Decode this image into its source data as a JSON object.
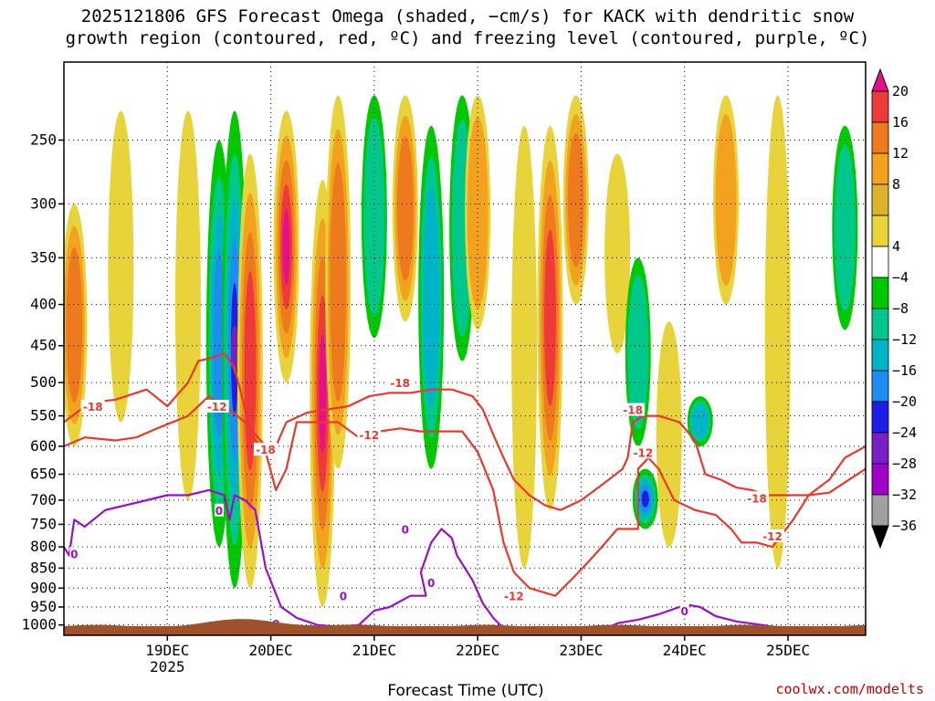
{
  "chart_data": {
    "type": "heatmap",
    "title_line1": "2025121806 GFS Forecast Omega (shaded, −cm/s) for KACK with dendritic snow",
    "title_line2": "growth region (contoured, red, ºC) and freezing level (contoured, purple, ºC)",
    "xlabel": "Forecast Time (UTC)",
    "ylabel": "",
    "x_ticks": [
      {
        "label": "19DEC",
        "sub": "2025",
        "day": 1
      },
      {
        "label": "20DEC",
        "sub": "",
        "day": 2
      },
      {
        "label": "21DEC",
        "sub": "",
        "day": 3
      },
      {
        "label": "22DEC",
        "sub": "",
        "day": 4
      },
      {
        "label": "23DEC",
        "sub": "",
        "day": 5
      },
      {
        "label": "24DEC",
        "sub": "",
        "day": 6
      },
      {
        "label": "25DEC",
        "sub": "",
        "day": 7
      }
    ],
    "x_range_days": [
      0.0,
      7.75
    ],
    "y_ticks": [
      250,
      300,
      350,
      400,
      450,
      500,
      550,
      600,
      650,
      700,
      750,
      800,
      850,
      900,
      950,
      1000
    ],
    "y_range_hpa": [
      200,
      1030
    ],
    "colorbar": {
      "labels": [
        "20",
        "16",
        "12",
        "8",
        "4",
        "−4",
        "−8",
        "−12",
        "−16",
        "−20",
        "−24",
        "−28",
        "−32",
        "−36"
      ],
      "colors": [
        "#e8108a",
        "#ee3a3a",
        "#ee7a1e",
        "#f2a21e",
        "#dcb42c",
        "#e8d43a",
        "#ffffff",
        "#00c800",
        "#00c88c",
        "#00b4c8",
        "#1e8cf0",
        "#1e1ee6",
        "#7a1ec8",
        "#a000c8",
        "#a0a0a0",
        "#000000"
      ]
    },
    "omega_bands": [
      {
        "day": 0.1,
        "p_top": 300,
        "p_bot": 600,
        "value": 12
      },
      {
        "day": 0.55,
        "p_top": 230,
        "p_bot": 560,
        "value": 6
      },
      {
        "day": 1.2,
        "p_top": 230,
        "p_bot": 700,
        "value": 5
      },
      {
        "day": 1.5,
        "p_top": 250,
        "p_bot": 800,
        "value": -16
      },
      {
        "day": 1.65,
        "p_top": 230,
        "p_bot": 900,
        "value": -24
      },
      {
        "day": 1.8,
        "p_top": 260,
        "p_bot": 900,
        "value": 16
      },
      {
        "day": 2.15,
        "p_top": 230,
        "p_bot": 500,
        "value": 20
      },
      {
        "day": 2.5,
        "p_top": 280,
        "p_bot": 950,
        "value": 20
      },
      {
        "day": 2.65,
        "p_top": 220,
        "p_bot": 640,
        "value": 12
      },
      {
        "day": 3.0,
        "p_top": 220,
        "p_bot": 440,
        "value": -10
      },
      {
        "day": 3.3,
        "p_top": 220,
        "p_bot": 420,
        "value": 14
      },
      {
        "day": 3.55,
        "p_top": 240,
        "p_bot": 640,
        "value": -12
      },
      {
        "day": 3.85,
        "p_top": 220,
        "p_bot": 470,
        "value": -8
      },
      {
        "day": 4.0,
        "p_top": 220,
        "p_bot": 430,
        "value": 8
      },
      {
        "day": 4.45,
        "p_top": 240,
        "p_bot": 850,
        "value": 6
      },
      {
        "day": 4.7,
        "p_top": 240,
        "p_bot": 720,
        "value": 16
      },
      {
        "day": 4.95,
        "p_top": 220,
        "p_bot": 400,
        "value": 14
      },
      {
        "day": 5.35,
        "p_top": 260,
        "p_bot": 460,
        "value": 6
      },
      {
        "day": 5.55,
        "p_top": 350,
        "p_bot": 600,
        "value": -8
      },
      {
        "day": 5.62,
        "p_top": 640,
        "p_bot": 760,
        "value": -20
      },
      {
        "day": 5.85,
        "p_top": 420,
        "p_bot": 800,
        "value": 6
      },
      {
        "day": 6.15,
        "p_top": 520,
        "p_bot": 600,
        "value": -12
      },
      {
        "day": 6.4,
        "p_top": 220,
        "p_bot": 400,
        "value": 8
      },
      {
        "day": 6.9,
        "p_top": 220,
        "p_bot": 850,
        "value": 6
      },
      {
        "day": 7.55,
        "p_top": 240,
        "p_bot": 430,
        "value": -8
      }
    ],
    "red_minus18_line": [
      [
        0.0,
        560
      ],
      [
        0.25,
        530
      ],
      [
        0.5,
        525
      ],
      [
        0.8,
        510
      ],
      [
        1.0,
        535
      ],
      [
        1.2,
        500
      ],
      [
        1.3,
        470
      ],
      [
        1.45,
        465
      ],
      [
        1.55,
        460
      ],
      [
        1.65,
        480
      ],
      [
        1.8,
        570
      ],
      [
        1.95,
        600
      ],
      [
        2.05,
        600
      ],
      [
        2.15,
        560
      ],
      [
        2.35,
        545
      ],
      [
        2.55,
        540
      ],
      [
        2.75,
        535
      ],
      [
        2.95,
        520
      ],
      [
        3.15,
        515
      ],
      [
        3.35,
        515
      ],
      [
        3.55,
        510
      ],
      [
        3.75,
        510
      ],
      [
        3.95,
        520
      ],
      [
        4.05,
        540
      ],
      [
        4.15,
        580
      ],
      [
        4.25,
        620
      ],
      [
        4.35,
        660
      ],
      [
        4.5,
        690
      ],
      [
        4.65,
        710
      ],
      [
        4.8,
        720
      ],
      [
        5.0,
        700
      ],
      [
        5.2,
        670
      ],
      [
        5.4,
        640
      ],
      [
        5.45,
        620
      ],
      [
        5.5,
        560
      ],
      [
        5.6,
        550
      ],
      [
        5.75,
        550
      ],
      [
        5.95,
        560
      ],
      [
        6.1,
        590
      ],
      [
        6.2,
        650
      ],
      [
        6.35,
        660
      ],
      [
        6.5,
        675
      ],
      [
        6.65,
        680
      ],
      [
        6.8,
        690
      ],
      [
        7.0,
        690
      ],
      [
        7.2,
        690
      ],
      [
        7.4,
        660
      ],
      [
        7.55,
        620
      ],
      [
        7.75,
        600
      ]
    ],
    "red_minus12_line": [
      [
        0.0,
        600
      ],
      [
        0.2,
        585
      ],
      [
        0.5,
        590
      ],
      [
        0.7,
        585
      ],
      [
        0.9,
        570
      ],
      [
        1.05,
        560
      ],
      [
        1.2,
        550
      ],
      [
        1.4,
        520
      ],
      [
        1.6,
        540
      ],
      [
        1.75,
        560
      ],
      [
        1.85,
        590
      ],
      [
        1.95,
        610
      ],
      [
        2.05,
        680
      ],
      [
        2.15,
        640
      ],
      [
        2.25,
        560
      ],
      [
        2.45,
        560
      ],
      [
        2.65,
        560
      ],
      [
        2.85,
        585
      ],
      [
        3.05,
        575
      ],
      [
        3.25,
        570
      ],
      [
        3.45,
        575
      ],
      [
        3.65,
        575
      ],
      [
        3.85,
        575
      ],
      [
        4.0,
        610
      ],
      [
        4.15,
        680
      ],
      [
        4.25,
        790
      ],
      [
        4.35,
        860
      ],
      [
        4.5,
        900
      ],
      [
        4.75,
        920
      ],
      [
        4.9,
        880
      ],
      [
        5.05,
        840
      ],
      [
        5.2,
        800
      ],
      [
        5.35,
        760
      ],
      [
        5.55,
        760
      ],
      [
        5.55,
        640
      ],
      [
        5.65,
        620
      ],
      [
        5.75,
        640
      ],
      [
        5.9,
        700
      ],
      [
        6.1,
        720
      ],
      [
        6.3,
        730
      ],
      [
        6.45,
        760
      ],
      [
        6.55,
        790
      ],
      [
        6.7,
        790
      ],
      [
        6.85,
        800
      ],
      [
        7.05,
        740
      ],
      [
        7.2,
        690
      ],
      [
        7.4,
        685
      ],
      [
        7.55,
        665
      ],
      [
        7.75,
        640
      ]
    ],
    "purple_zero_line": [
      [
        0.0,
        800
      ],
      [
        0.05,
        820
      ],
      [
        0.1,
        740
      ],
      [
        0.2,
        755
      ],
      [
        0.4,
        720
      ],
      [
        0.6,
        710
      ],
      [
        0.8,
        700
      ],
      [
        1.0,
        690
      ],
      [
        1.2,
        690
      ],
      [
        1.4,
        680
      ],
      [
        1.55,
        690
      ],
      [
        1.6,
        740
      ],
      [
        1.65,
        690
      ],
      [
        1.75,
        700
      ],
      [
        1.85,
        720
      ],
      [
        1.95,
        850
      ],
      [
        2.1,
        950
      ],
      [
        2.25,
        980
      ],
      [
        2.45,
        1000
      ],
      [
        2.65,
        1005
      ],
      [
        2.85,
        1000
      ],
      [
        3.0,
        960
      ],
      [
        3.15,
        950
      ],
      [
        3.35,
        920
      ],
      [
        3.5,
        920
      ],
      [
        3.45,
        860
      ],
      [
        3.55,
        790
      ],
      [
        3.65,
        760
      ],
      [
        3.75,
        780
      ],
      [
        3.8,
        820
      ],
      [
        3.95,
        880
      ],
      [
        4.05,
        940
      ],
      [
        4.15,
        980
      ],
      [
        4.25,
        1010
      ]
    ],
    "purple_low_line": [
      [
        5.25,
        1010
      ],
      [
        5.35,
        995
      ],
      [
        5.55,
        985
      ],
      [
        5.75,
        970
      ],
      [
        5.95,
        950
      ],
      [
        6.05,
        945
      ],
      [
        6.15,
        950
      ],
      [
        6.3,
        975
      ],
      [
        6.5,
        990
      ],
      [
        6.75,
        1000
      ],
      [
        7.0,
        1012
      ],
      [
        7.5,
        1015
      ],
      [
        7.6,
        1005
      ],
      [
        7.75,
        1005
      ]
    ],
    "contour_labels": [
      {
        "text": "-18",
        "day": 0.28,
        "p": 535,
        "color": "red"
      },
      {
        "text": "-12",
        "day": 1.48,
        "p": 535,
        "color": "red"
      },
      {
        "text": "-18",
        "day": 1.95,
        "p": 605,
        "color": "red"
      },
      {
        "text": "-18",
        "day": 3.25,
        "p": 500,
        "color": "red"
      },
      {
        "text": "-12",
        "day": 2.95,
        "p": 580,
        "color": "red"
      },
      {
        "text": "-12",
        "day": 4.35,
        "p": 920,
        "color": "red"
      },
      {
        "text": "-18",
        "day": 5.5,
        "p": 540,
        "color": "red"
      },
      {
        "text": "-12",
        "day": 5.6,
        "p": 610,
        "color": "red"
      },
      {
        "text": "-18",
        "day": 6.7,
        "p": 695,
        "color": "red"
      },
      {
        "text": "-12",
        "day": 6.85,
        "p": 775,
        "color": "red"
      },
      {
        "text": "0",
        "day": 0.1,
        "p": 815,
        "color": "purple"
      },
      {
        "text": "0",
        "day": 1.5,
        "p": 720,
        "color": "purple"
      },
      {
        "text": "0",
        "day": 2.05,
        "p": 995,
        "color": "purple"
      },
      {
        "text": "0",
        "day": 2.7,
        "p": 920,
        "color": "purple"
      },
      {
        "text": "0",
        "day": 3.3,
        "p": 760,
        "color": "purple"
      },
      {
        "text": "0",
        "day": 3.55,
        "p": 885,
        "color": "purple"
      },
      {
        "text": "0",
        "day": 6.0,
        "p": 960,
        "color": "purple"
      }
    ],
    "terrain_color": "#a0522d",
    "frame_color": "#000000"
  },
  "credit": "coolwx.com/modelts"
}
